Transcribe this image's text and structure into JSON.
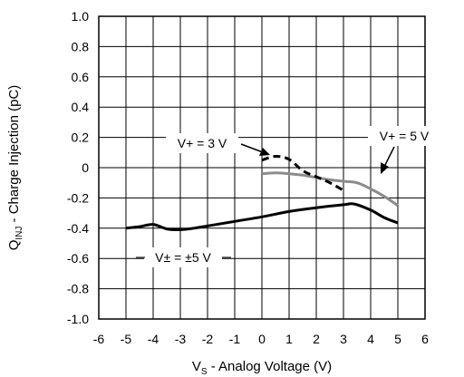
{
  "chart_data": {
    "type": "line",
    "title": "",
    "xlabel": "Analog Voltage (V)",
    "xlabel_prefix": "V",
    "xlabel_sub": "S",
    "xlabel_sep": " - ",
    "ylabel": "Charge Injection (pC)",
    "ylabel_prefix": "Q",
    "ylabel_sub": "INJ",
    "ylabel_sep": " - ",
    "xlim": [
      -6,
      6
    ],
    "ylim": [
      -1.0,
      1.0
    ],
    "grid": true,
    "x_ticks": [
      "-6",
      "-5",
      "-4",
      "-3",
      "-2",
      "-1",
      "0",
      "1",
      "2",
      "3",
      "4",
      "5",
      "6"
    ],
    "y_ticks": [
      "1.0",
      "0.8",
      "0.6",
      "0.4",
      "0.2",
      "0",
      "-0.2",
      "-0.4",
      "-0.6",
      "-0.8",
      "-1.0"
    ],
    "series": [
      {
        "name": "V± = ±5 V",
        "color": "#000000",
        "style": "solid",
        "points": [
          [
            -5,
            -0.4
          ],
          [
            -4.5,
            -0.39
          ],
          [
            -4,
            -0.375
          ],
          [
            -3.5,
            -0.405
          ],
          [
            -3,
            -0.41
          ],
          [
            -2.5,
            -0.4
          ],
          [
            -2,
            -0.385
          ],
          [
            -1,
            -0.355
          ],
          [
            0,
            -0.325
          ],
          [
            1,
            -0.29
          ],
          [
            2,
            -0.265
          ],
          [
            3,
            -0.245
          ],
          [
            3.4,
            -0.24
          ],
          [
            4,
            -0.28
          ],
          [
            4.5,
            -0.33
          ],
          [
            5,
            -0.365
          ]
        ]
      },
      {
        "name": "V+ = 5 V",
        "color": "#8c8c8c",
        "style": "solid",
        "points": [
          [
            0,
            -0.04
          ],
          [
            0.5,
            -0.035
          ],
          [
            1,
            -0.04
          ],
          [
            1.5,
            -0.05
          ],
          [
            2,
            -0.065
          ],
          [
            2.5,
            -0.08
          ],
          [
            3,
            -0.09
          ],
          [
            3.5,
            -0.1
          ],
          [
            4,
            -0.14
          ],
          [
            4.5,
            -0.19
          ],
          [
            5,
            -0.25
          ]
        ]
      },
      {
        "name": "V+ = 3 V",
        "color": "#000000",
        "style": "dashed",
        "points": [
          [
            0,
            0.05
          ],
          [
            0.5,
            0.075
          ],
          [
            1,
            0.055
          ],
          [
            1.5,
            -0.02
          ],
          [
            2,
            -0.06
          ],
          [
            2.5,
            -0.1
          ],
          [
            3,
            -0.15
          ]
        ]
      }
    ],
    "annotations": [
      {
        "text": "V+ = 3 V",
        "series": 2
      },
      {
        "text": "V+ = 5 V",
        "series": 1
      },
      {
        "text": "V± = ±5 V",
        "series": 0
      }
    ]
  }
}
